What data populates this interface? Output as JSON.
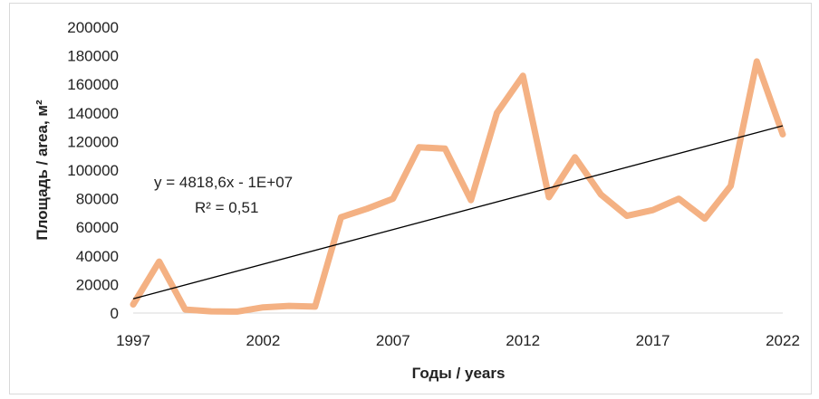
{
  "chart_data": {
    "type": "line",
    "xlabel": "Годы / years",
    "ylabel": "Площадь / area, м²",
    "xlim": [
      1997,
      2022
    ],
    "ylim": [
      0,
      200000
    ],
    "x_ticks": [
      "1997",
      "2002",
      "2007",
      "2012",
      "2017",
      "2022"
    ],
    "y_ticks": [
      "0",
      "20000",
      "40000",
      "60000",
      "80000",
      "100000",
      "120000",
      "140000",
      "160000",
      "180000",
      "200000"
    ],
    "series": [
      {
        "x": [
          1997,
          1998,
          1999,
          2000,
          2001,
          2002,
          2003,
          2004,
          2005,
          2006,
          2007,
          2008,
          2009,
          2010,
          2011,
          2012,
          2013,
          2014,
          2015,
          2016,
          2017,
          2018,
          2019,
          2020,
          2021,
          2022
        ],
        "values": [
          6000,
          36000,
          2500,
          1200,
          1000,
          4000,
          5000,
          4500,
          67000,
          73000,
          80000,
          116000,
          115000,
          79000,
          140000,
          166000,
          81000,
          109000,
          83000,
          68000,
          72000,
          80000,
          66000,
          89000,
          176000,
          125000
        ],
        "color": "#f4b183"
      }
    ],
    "trendline": {
      "x": [
        1997,
        2022
      ],
      "values": [
        10000,
        131000
      ],
      "color": "#000000",
      "equation": "y = 4818,6x - 1E+07",
      "r2": "R² = 0,51"
    },
    "grid": false,
    "legend": "none"
  }
}
